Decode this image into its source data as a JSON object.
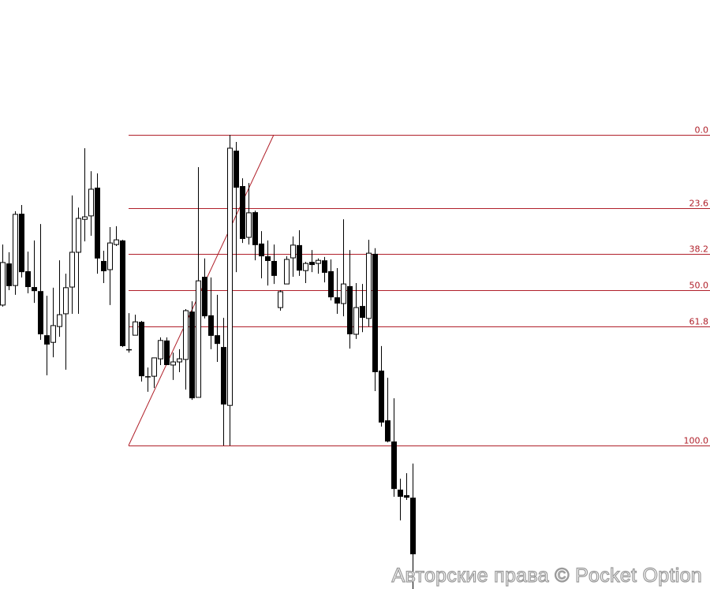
{
  "chart_data": {
    "type": "candlestick",
    "value_units": "fibonacci retracement level (0.0 at top line, 100.0 at bottom line)",
    "fib_levels": [
      {
        "value": 0.0,
        "label": "0.0"
      },
      {
        "value": 23.6,
        "label": "23.6"
      },
      {
        "value": 38.2,
        "label": "38.2"
      },
      {
        "value": 50.0,
        "label": "50.0"
      },
      {
        "value": 61.8,
        "label": "61.8"
      },
      {
        "value": 100.0,
        "label": "100.0"
      }
    ],
    "fib_trendline": {
      "from_level": 100.0,
      "to_level": 0.0
    },
    "colors": {
      "fib": "#b0202a",
      "bull_body": "#ffffff",
      "bear_body": "#000000",
      "wick": "#000000"
    },
    "candles": [
      [
        54.8,
        35.3,
        55.3,
        41.1
      ],
      [
        41.4,
        37.8,
        50.0,
        48.7
      ],
      [
        48.5,
        24.6,
        51.5,
        25.6
      ],
      [
        25.4,
        22.6,
        45.9,
        44.2
      ],
      [
        43.9,
        37.6,
        51.0,
        49.0
      ],
      [
        49.0,
        34.0,
        54.1,
        50.3
      ],
      [
        50.3,
        28.7,
        66.0,
        64.2
      ],
      [
        64.5,
        51.8,
        77.4,
        67.5
      ],
      [
        66.8,
        49.2,
        71.6,
        61.4
      ],
      [
        61.7,
        40.4,
        65.0,
        57.9
      ],
      [
        57.6,
        44.7,
        75.6,
        49.2
      ],
      [
        49.0,
        19.5,
        57.6,
        37.8
      ],
      [
        37.8,
        23.4,
        57.6,
        26.9
      ],
      [
        27.2,
        4.3,
        34.3,
        26.4
      ],
      [
        26.1,
        11.7,
        32.5,
        17.5
      ],
      [
        17.0,
        12.4,
        44.7,
        39.8
      ],
      [
        40.6,
        37.3,
        47.7,
        43.9
      ],
      [
        43.4,
        29.7,
        54.8,
        34.8
      ],
      [
        35.3,
        29.4,
        35.8,
        33.8
      ],
      [
        34.0,
        33.8,
        68.3,
        68.0
      ],
      [
        69.0,
        57.4,
        70.1,
        69.3
      ],
      [
        64.5,
        57.9,
        64.5,
        60.2
      ],
      [
        60.2,
        59.9,
        79.4,
        77.7
      ],
      [
        77.7,
        74.9,
        82.7,
        77.9
      ],
      [
        77.7,
        71.8,
        81.5,
        71.8
      ],
      [
        72.1,
        65.2,
        74.1,
        66.2
      ],
      [
        66.2,
        65.2,
        74.1,
        74.1
      ],
      [
        74.1,
        70.1,
        78.9,
        73.1
      ],
      [
        73.1,
        69.0,
        76.4,
        72.1
      ],
      [
        72.3,
        56.1,
        82.0,
        56.6
      ],
      [
        56.9,
        53.6,
        85.3,
        84.8
      ],
      [
        84.5,
        10.4,
        84.5,
        47.0
      ],
      [
        45.7,
        39.8,
        59.1,
        58.4
      ],
      [
        58.1,
        45.9,
        69.0,
        64.7
      ],
      [
        64.5,
        51.5,
        73.1,
        67.3
      ],
      [
        68.3,
        58.9,
        100.0,
        86.8
      ],
      [
        87.1,
        0.0,
        100.0,
        4.3
      ],
      [
        5.1,
        2.3,
        44.2,
        17.0
      ],
      [
        16.5,
        14.0,
        34.8,
        33.5
      ],
      [
        33.0,
        15.5,
        35.3,
        25.1
      ],
      [
        24.9,
        24.4,
        40.4,
        35.5
      ],
      [
        35.0,
        31.0,
        46.2,
        39.1
      ],
      [
        39.1,
        34.0,
        48.5,
        40.6
      ],
      [
        40.6,
        35.3,
        48.0,
        45.4
      ],
      [
        55.6,
        50.0,
        56.6,
        50.5
      ],
      [
        48.0,
        39.1,
        48.0,
        40.1
      ],
      [
        39.6,
        32.7,
        45.7,
        35.5
      ],
      [
        35.5,
        30.7,
        45.4,
        43.7
      ],
      [
        43.7,
        40.9,
        47.7,
        41.4
      ],
      [
        40.9,
        37.1,
        44.2,
        41.9
      ],
      [
        41.4,
        39.8,
        44.7,
        40.4
      ],
      [
        40.4,
        39.3,
        47.5,
        44.4
      ],
      [
        43.9,
        40.1,
        53.3,
        52.3
      ],
      [
        52.3,
        42.9,
        57.6,
        54.3
      ],
      [
        54.3,
        27.2,
        58.4,
        48.0
      ],
      [
        48.7,
        37.1,
        68.8,
        64.2
      ],
      [
        64.2,
        47.7,
        65.7,
        55.6
      ],
      [
        55.1,
        48.0,
        63.5,
        58.9
      ],
      [
        59.1,
        33.8,
        61.7,
        38.1
      ],
      [
        38.3,
        36.5,
        82.5,
        76.4
      ],
      [
        75.9,
        68.0,
        93.9,
        92.6
      ],
      [
        91.9,
        78.2,
        99.0,
        98.7
      ],
      [
        98.7,
        84.8,
        116.5,
        114.0
      ],
      [
        114.2,
        110.7,
        124.1,
        116.5
      ],
      [
        116.0,
        108.9,
        117.5,
        116.8
      ],
      [
        116.8,
        105.8,
        146.2,
        135.0
      ]
    ],
    "candle_fields": [
      "open",
      "high",
      "low",
      "close"
    ],
    "grid": false,
    "legend": "none"
  },
  "watermark": "Авторские права © Pocket Option"
}
